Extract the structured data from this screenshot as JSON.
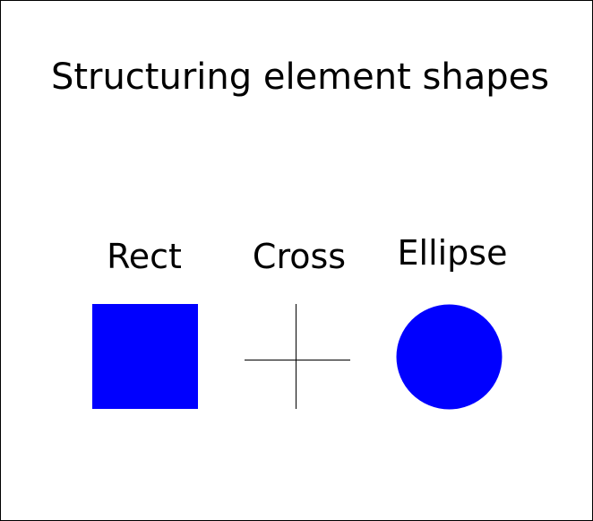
{
  "title": "Structuring element shapes",
  "shapes": [
    {
      "label": "Rect",
      "kind": "rectangle",
      "color": "#0000ff"
    },
    {
      "label": "Cross",
      "kind": "cross",
      "color": "#000000"
    },
    {
      "label": "Ellipse",
      "kind": "ellipse",
      "color": "#0000ff"
    }
  ]
}
